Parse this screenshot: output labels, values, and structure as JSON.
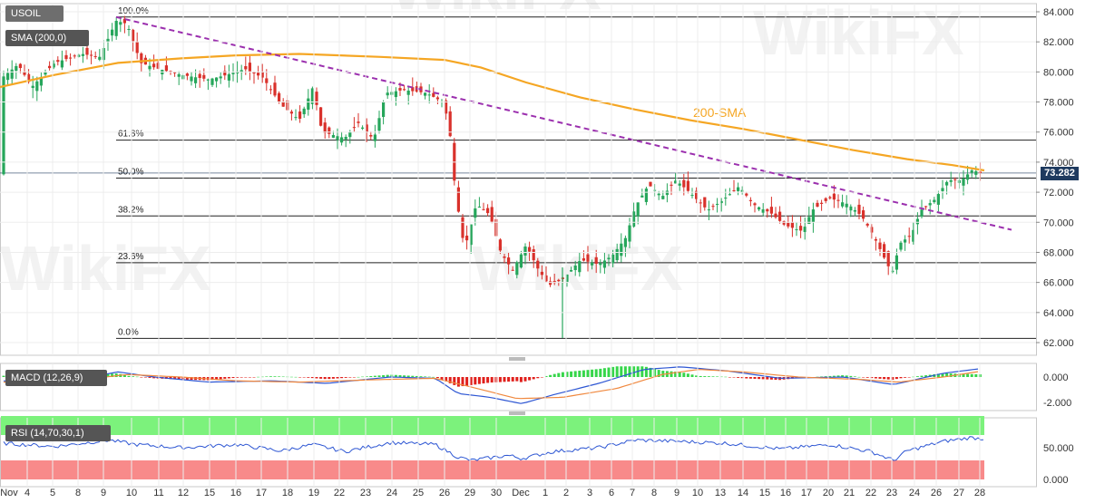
{
  "symbol": "USOIL",
  "indicator_sma_label": "SMA (200,0)",
  "macd_label": "MACD (12,26,9)",
  "rsi_label": "RSI (14,70,30,1)",
  "sma_annotation": "200-SMA",
  "last_price": "73.282",
  "colors": {
    "bull": "#26a65b",
    "bear": "#d9312b",
    "sma": "#f5a623",
    "trendline": "#9b2fae",
    "macd_line": "#2d56d3",
    "signal_line": "#f0883e",
    "rsi_line": "#2d56d3",
    "rsi_ob": "#7cf27c",
    "rsi_os": "#f88a8a",
    "price_tag": "#1e3a5f"
  },
  "chart_data": {
    "type": "candlestick",
    "price_axis": {
      "ticks": [
        "84.000",
        "82.000",
        "80.000",
        "78.000",
        "76.000",
        "74.000",
        "72.000",
        "70.000",
        "68.000",
        "66.000",
        "64.000",
        "62.000"
      ],
      "range": [
        61.2,
        84.8
      ]
    },
    "x_ticks": [
      "Nov",
      "4",
      "5",
      "8",
      "9",
      "10",
      "11",
      "12",
      "15",
      "16",
      "17",
      "18",
      "19",
      "22",
      "23",
      "24",
      "25",
      "26",
      "29",
      "30",
      "Dec",
      "1",
      "2",
      "3",
      "6",
      "7",
      "8",
      "9",
      "10",
      "13",
      "14",
      "15",
      "16",
      "17",
      "20",
      "21",
      "22",
      "23",
      "24",
      "26",
      "27",
      "28"
    ],
    "fibonacci": [
      {
        "label": "100.0%",
        "price": 83.65
      },
      {
        "label": "61.8%",
        "price": 75.46
      },
      {
        "label": "50.0%",
        "price": 72.94
      },
      {
        "label": "38.2%",
        "price": 70.42
      },
      {
        "label": "23.6%",
        "price": 67.31
      },
      {
        "label": "0.0%",
        "price": 62.28
      }
    ],
    "macd_axis": {
      "ticks": [
        "0.000",
        "-2.000"
      ]
    },
    "rsi_axis": {
      "ticks": [
        "50.000",
        "0.000"
      ],
      "levels": [
        70,
        30
      ]
    }
  }
}
